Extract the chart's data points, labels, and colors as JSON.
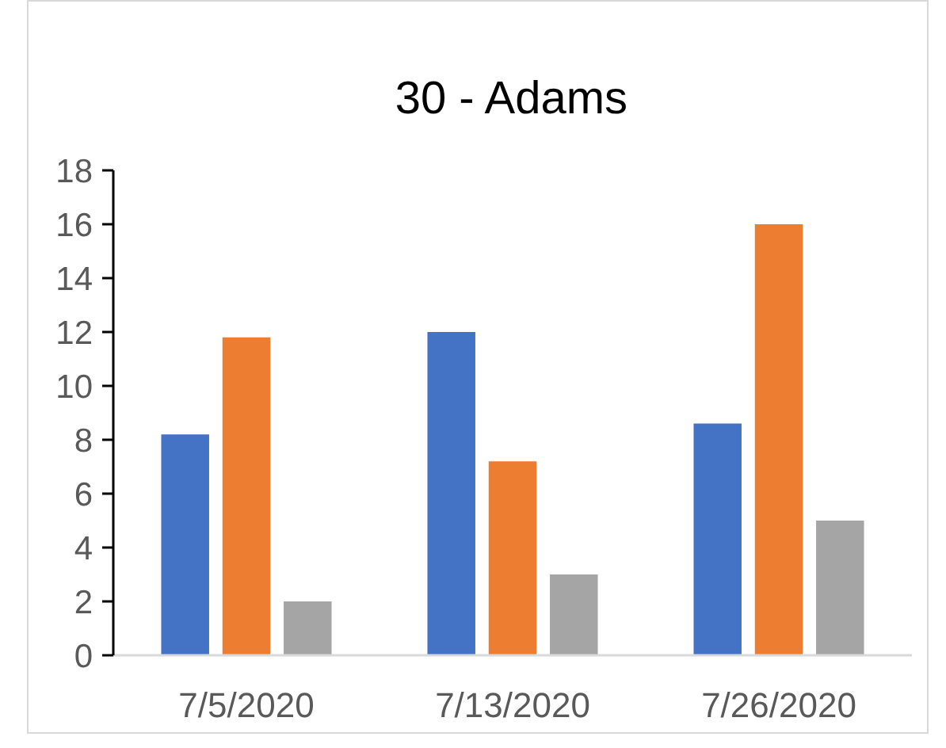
{
  "chart_data": {
    "type": "bar",
    "title": "30 - Adams",
    "categories": [
      "7/5/2020",
      "7/13/2020",
      "7/26/2020"
    ],
    "series": [
      {
        "color": "#4472c4",
        "values": [
          8.2,
          12,
          8.6
        ]
      },
      {
        "color": "#ed7d31",
        "values": [
          11.8,
          7.2,
          16
        ]
      },
      {
        "color": "#a5a5a5",
        "values": [
          2.0,
          3,
          5.0
        ]
      }
    ],
    "ylim": [
      0,
      18
    ],
    "yticks": [
      0,
      2,
      4,
      6,
      8,
      10,
      12,
      14,
      16,
      18
    ]
  }
}
